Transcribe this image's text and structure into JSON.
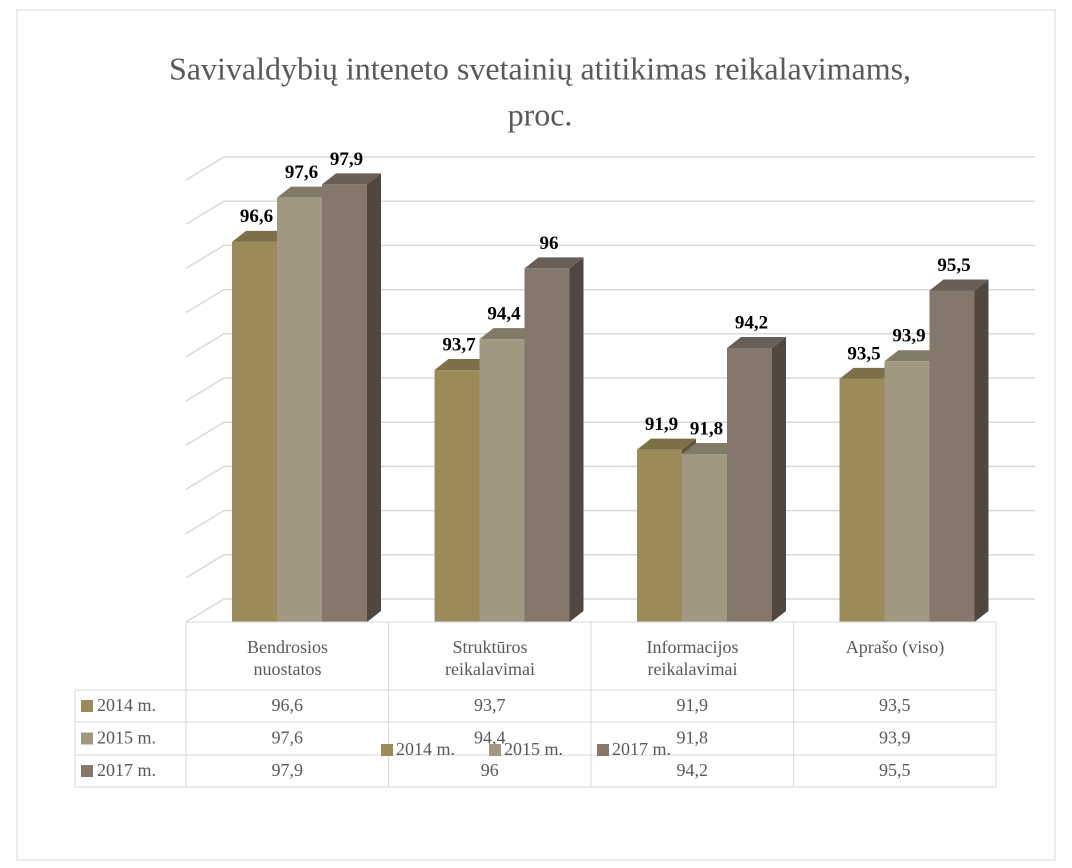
{
  "chart_data": {
    "type": "bar3d",
    "title": "Savivaldybių inteneto svetainių atitikimas reikalavimams,",
    "title_line_2": "proc.",
    "categories": [
      "Bendrosios nuostatos",
      "Struktūros reikalavimai",
      "Informacijos reikalavimai",
      "Aprašo (viso)"
    ],
    "series": [
      {
        "name": "2014 m.",
        "color": "#9c8b5a",
        "values": [
          96.6,
          93.7,
          91.9,
          93.5
        ],
        "value_labels": [
          "96,6",
          "93,7",
          "91,9",
          "93,5"
        ]
      },
      {
        "name": "2015 m.",
        "color": "#a09880",
        "values": [
          97.6,
          94.4,
          91.8,
          93.9
        ],
        "value_labels": [
          "97,6",
          "94,4",
          "91,8",
          "93,9"
        ]
      },
      {
        "name": "2017 m.",
        "color": "#85776b",
        "values": [
          97.9,
          96,
          94.2,
          95.5
        ],
        "value_labels": [
          "97,9",
          "96",
          "94,2",
          "95,5"
        ]
      }
    ],
    "ylim": [
      88,
      98
    ],
    "yticks": [
      88,
      89,
      90,
      91,
      92,
      93,
      94,
      95,
      96,
      97,
      98
    ],
    "grid": true,
    "legend": "bottom",
    "data_table": true
  }
}
